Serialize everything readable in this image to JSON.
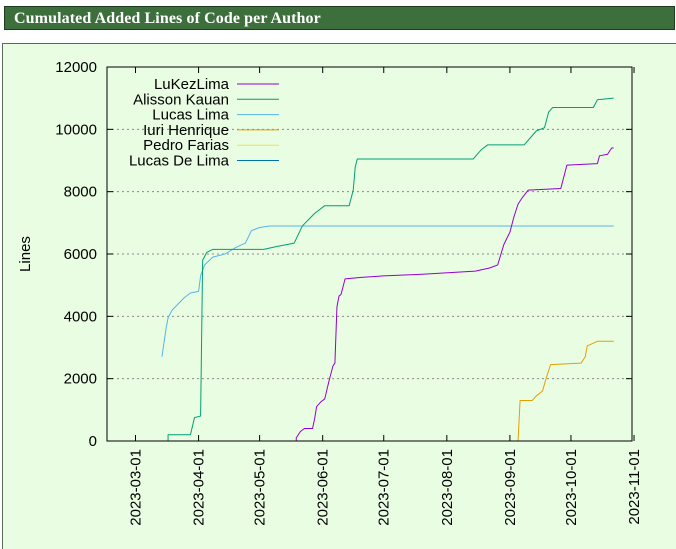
{
  "page": {
    "title": "Cumulated Added Lines of Code per Author"
  },
  "chart_data": {
    "type": "line",
    "title": "Cumulated Added Lines of Code per Author",
    "xlabel": "",
    "ylabel": "Lines",
    "xlim": [
      "2023-02-15",
      "2023-10-31"
    ],
    "ylim": [
      0,
      12000
    ],
    "x_ticks": [
      "2023-03-01",
      "2023-04-01",
      "2023-05-01",
      "2023-06-01",
      "2023-07-01",
      "2023-08-01",
      "2023-09-01",
      "2023-10-01",
      "2023-11-01"
    ],
    "y_ticks": [
      0,
      2000,
      4000,
      6000,
      8000,
      10000,
      12000
    ],
    "grid": "horizontal dotted",
    "legend_position": "top-left",
    "series": [
      {
        "name": "LuKezLima",
        "color": "#9400d3",
        "points": [
          [
            "2023-05-19",
            0
          ],
          [
            "2023-05-19",
            100
          ],
          [
            "2023-05-21",
            300
          ],
          [
            "2023-05-23",
            400
          ],
          [
            "2023-05-27",
            400
          ],
          [
            "2023-05-28",
            700
          ],
          [
            "2023-05-29",
            1100
          ],
          [
            "2023-05-31",
            1250
          ],
          [
            "2023-06-02",
            1350
          ],
          [
            "2023-06-04",
            1900
          ],
          [
            "2023-06-06",
            2400
          ],
          [
            "2023-06-07",
            2500
          ],
          [
            "2023-06-08",
            4300
          ],
          [
            "2023-06-09",
            4650
          ],
          [
            "2023-06-10",
            4700
          ],
          [
            "2023-06-12",
            5200
          ],
          [
            "2023-06-20",
            5250
          ],
          [
            "2023-07-01",
            5300
          ],
          [
            "2023-07-20",
            5350
          ],
          [
            "2023-08-15",
            5450
          ],
          [
            "2023-08-22",
            5550
          ],
          [
            "2023-08-26",
            5650
          ],
          [
            "2023-08-29",
            6300
          ],
          [
            "2023-09-01",
            6700
          ],
          [
            "2023-09-03",
            7200
          ],
          [
            "2023-09-05",
            7600
          ],
          [
            "2023-09-07",
            7800
          ],
          [
            "2023-09-10",
            8050
          ],
          [
            "2023-09-26",
            8100
          ],
          [
            "2023-09-29",
            8850
          ],
          [
            "2023-10-14",
            8900
          ],
          [
            "2023-10-15",
            9150
          ],
          [
            "2023-10-19",
            9200
          ],
          [
            "2023-10-21",
            9400
          ],
          [
            "2023-10-22",
            9400
          ]
        ]
      },
      {
        "name": "Alisson Kauan",
        "color": "#009e73",
        "points": [
          [
            "2023-03-17",
            0
          ],
          [
            "2023-03-17",
            200
          ],
          [
            "2023-03-28",
            200
          ],
          [
            "2023-03-30",
            750
          ],
          [
            "2023-04-02",
            800
          ],
          [
            "2023-04-03",
            5800
          ],
          [
            "2023-04-05",
            6050
          ],
          [
            "2023-04-08",
            6150
          ],
          [
            "2023-05-03",
            6150
          ],
          [
            "2023-05-10",
            6250
          ],
          [
            "2023-05-18",
            6350
          ],
          [
            "2023-05-22",
            6900
          ],
          [
            "2023-05-28",
            7300
          ],
          [
            "2023-06-02",
            7550
          ],
          [
            "2023-06-14",
            7550
          ],
          [
            "2023-06-16",
            8050
          ],
          [
            "2023-06-17",
            8800
          ],
          [
            "2023-06-18",
            9050
          ],
          [
            "2023-08-14",
            9050
          ],
          [
            "2023-08-18",
            9350
          ],
          [
            "2023-08-21",
            9500
          ],
          [
            "2023-09-08",
            9500
          ],
          [
            "2023-09-14",
            9950
          ],
          [
            "2023-09-18",
            10050
          ],
          [
            "2023-09-20",
            10550
          ],
          [
            "2023-09-22",
            10700
          ],
          [
            "2023-10-12",
            10700
          ],
          [
            "2023-10-14",
            10950
          ],
          [
            "2023-10-22",
            11000
          ]
        ]
      },
      {
        "name": "Lucas Lima",
        "color": "#56b4e9",
        "points": [
          [
            "2023-03-14",
            2700
          ],
          [
            "2023-03-16",
            3600
          ],
          [
            "2023-03-17",
            3950
          ],
          [
            "2023-03-19",
            4200
          ],
          [
            "2023-03-22",
            4400
          ],
          [
            "2023-03-25",
            4600
          ],
          [
            "2023-03-28",
            4750
          ],
          [
            "2023-04-01",
            4800
          ],
          [
            "2023-04-02",
            5300
          ],
          [
            "2023-04-04",
            5650
          ],
          [
            "2023-04-08",
            5900
          ],
          [
            "2023-04-14",
            6000
          ],
          [
            "2023-04-19",
            6200
          ],
          [
            "2023-04-24",
            6350
          ],
          [
            "2023-04-27",
            6750
          ],
          [
            "2023-05-01",
            6850
          ],
          [
            "2023-05-06",
            6900
          ],
          [
            "2023-10-22",
            6900
          ]
        ]
      },
      {
        "name": "Iuri Henrique",
        "color": "#e69f00",
        "points": [
          [
            "2023-04-10",
            0
          ],
          [
            "2023-09-05",
            0
          ],
          [
            "2023-09-06",
            1300
          ],
          [
            "2023-09-12",
            1300
          ],
          [
            "2023-09-14",
            1450
          ],
          [
            "2023-09-17",
            1600
          ],
          [
            "2023-09-19",
            2050
          ],
          [
            "2023-09-21",
            2450
          ],
          [
            "2023-10-06",
            2500
          ],
          [
            "2023-10-08",
            2700
          ],
          [
            "2023-10-09",
            3050
          ],
          [
            "2023-10-14",
            3200
          ],
          [
            "2023-10-22",
            3200
          ]
        ]
      },
      {
        "name": "Pedro Farias",
        "color": "#f0e442",
        "points": [
          [
            "2023-04-12",
            0
          ],
          [
            "2023-10-22",
            0
          ]
        ]
      },
      {
        "name": "Lucas De Lima",
        "color": "#0072b2",
        "points": [
          [
            "2023-06-05",
            0
          ],
          [
            "2023-10-22",
            0
          ]
        ]
      }
    ]
  }
}
